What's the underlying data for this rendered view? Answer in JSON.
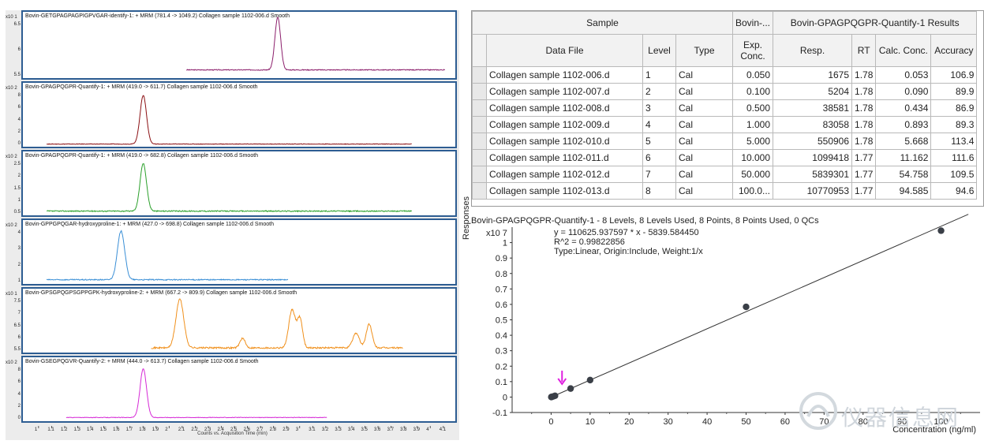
{
  "chromatograms": [
    {
      "title": "Bovin-GETGPAGPAGPIGPVGAR-identify-1: + MRM (781.4 -> 1049.2) Collagen sample 1102-006.d  Smooth",
      "y_exp": "x10 1",
      "y_ticks": [
        "6.5",
        "6",
        "5.5"
      ],
      "color": "#8b1e6b"
    },
    {
      "title": "Bovin-GPAGPQGPR-Quantify-1: + MRM (419.0 -> 611.7) Collagen sample 1102-006.d  Smooth",
      "y_exp": "x10 2",
      "y_ticks": [
        "8",
        "6",
        "4",
        "2",
        "0"
      ],
      "color": "#8b0f12"
    },
    {
      "title": "Bovin-GPAGPQGPR-Quantify-1: + MRM (419.0 -> 682.8) Collagen sample 1102-006.d  Smooth",
      "y_exp": "x10 2",
      "y_ticks": [
        "2.5",
        "2",
        "1.5",
        "1",
        "0.5"
      ],
      "color": "#2aa02a"
    },
    {
      "title": "Bovin-GPPGPQGAR-hydroxyproline-1: + MRM (427.0 -> 698.8)  Collagen sample 1102-006.d  Smooth",
      "y_exp": "x10 2",
      "y_ticks": [
        "4",
        "3",
        "2",
        "1"
      ],
      "color": "#3a8fd6"
    },
    {
      "title": "Bovin-GPSGPQGPSGPPGPK-hydroxyproline-2: + MRM (667.2 -> 809.9) Collagen sample 1102-006.d  Smooth",
      "y_exp": "x10 1",
      "y_ticks": [
        "7.5",
        "7",
        "6.5",
        "6",
        "5.5"
      ],
      "color": "#f0901c"
    },
    {
      "title": "Bovin-GSEGPQGVR-Quantify-2: + MRM (444.0 -> 613.7) Collagen sample 1102-006.d  Smooth",
      "y_exp": "x10 2",
      "y_ticks": [
        "8",
        "6",
        "4",
        "2",
        "0"
      ],
      "color": "#d62ad6"
    }
  ],
  "time_axis": {
    "ticks": [
      "1",
      "1.1",
      "1.2",
      "1.3",
      "1.4",
      "1.5",
      "1.6",
      "1.7",
      "1.8",
      "1.9",
      "2",
      "2.1",
      "2.2",
      "2.3",
      "2.4",
      "2.5",
      "2.6",
      "2.7",
      "2.8",
      "2.9",
      "3",
      "3.1",
      "3.2",
      "3.3",
      "3.4",
      "3.5",
      "3.6",
      "3.7",
      "3.8",
      "3.9",
      "4",
      "4.1"
    ],
    "label": "Counts vs. Acquisition Time (min)"
  },
  "table": {
    "group_headers": {
      "sample": "Sample",
      "target": "Bovin-...",
      "results": "Bovin-GPAGPQGPR-Quantify-1 Results"
    },
    "columns": [
      "Data File",
      "Level",
      "Type",
      "Exp. Conc.",
      "Resp.",
      "RT",
      "Calc. Conc.",
      "Accuracy"
    ],
    "rows": [
      [
        "Collagen sample 1102-006.d",
        "1",
        "Cal",
        "0.050",
        "1675",
        "1.78",
        "0.053",
        "106.9"
      ],
      [
        "Collagen sample 1102-007.d",
        "2",
        "Cal",
        "0.100",
        "5204",
        "1.78",
        "0.090",
        "89.9"
      ],
      [
        "Collagen sample 1102-008.d",
        "3",
        "Cal",
        "0.500",
        "38581",
        "1.78",
        "0.434",
        "86.9"
      ],
      [
        "Collagen sample 1102-009.d",
        "4",
        "Cal",
        "1.000",
        "83058",
        "1.78",
        "0.893",
        "89.3"
      ],
      [
        "Collagen sample 1102-010.d",
        "5",
        "Cal",
        "5.000",
        "550906",
        "1.78",
        "5.668",
        "113.4"
      ],
      [
        "Collagen sample 1102-011.d",
        "6",
        "Cal",
        "10.000",
        "1099418",
        "1.77",
        "11.162",
        "111.6"
      ],
      [
        "Collagen sample 1102-012.d",
        "7",
        "Cal",
        "50.000",
        "5839301",
        "1.77",
        "54.758",
        "109.5"
      ],
      [
        "Collagen sample 1102-013.d",
        "8",
        "Cal",
        "100.0...",
        "10770953",
        "1.77",
        "94.585",
        "94.6"
      ]
    ]
  },
  "calibration": {
    "title": "Bovin-GPAGPQGPR-Quantify-1 - 8 Levels, 8 Levels Used, 8 Points, 8 Points Used, 0 QCs",
    "equation": "y = 110625.937597 * x  - 5839.584450",
    "r2": "R^2 = 0.99822856",
    "fit_info": "Type:Linear, Origin:Include, Weight:1/x",
    "y_exp": "x10 7",
    "ylabel": "Responses",
    "xlabel": "Concentration (ng/ml)",
    "x_ticks": [
      "0",
      "10",
      "20",
      "30",
      "40",
      "50",
      "60",
      "70",
      "80",
      "90",
      "100"
    ],
    "y_ticks": [
      "1",
      "0.9",
      "0.8",
      "0.7",
      "0.6",
      "0.5",
      "0.4",
      "0.3",
      "0.2",
      "0.1",
      "0",
      "-0.1"
    ]
  },
  "chart_data": {
    "type": "scatter",
    "title": "Bovin-GPAGPQGPR-Quantify-1 - 8 Levels, 8 Levels Used, 8 Points, 8 Points Used, 0 QCs",
    "xlabel": "Concentration (ng/ml)",
    "ylabel": "Responses",
    "y_scale_note": "x10 7",
    "xlim": [
      -10,
      110
    ],
    "ylim": [
      -0.1,
      1.1
    ],
    "x": [
      0.05,
      0.1,
      0.5,
      1.0,
      5.0,
      10.0,
      50.0,
      100.0
    ],
    "y": [
      0.0001675,
      0.0005204,
      0.0038581,
      0.0083058,
      0.0550906,
      0.1099418,
      0.5839301,
      1.0770953
    ],
    "fit": {
      "slope": 0.0110625937597,
      "intercept": -0.000583958445
    },
    "colors": {
      "points": "#3a3f47",
      "fit_line": "#333333",
      "marker": "#e020e0"
    }
  },
  "watermark": "仪器信息网"
}
